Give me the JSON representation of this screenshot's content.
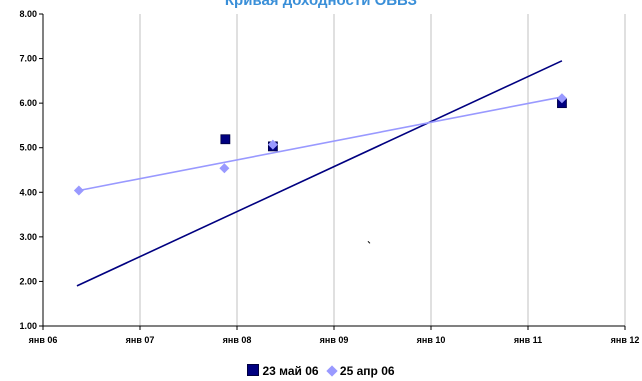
{
  "chart_data": {
    "type": "scatter",
    "title": "Кривая доходности ОБВЗ",
    "xlabel": "",
    "ylabel": "",
    "x_tick_labels": [
      "янв 06",
      "янв 07",
      "янв 08",
      "янв 09",
      "янв 10",
      "янв 11",
      "янв 12"
    ],
    "x_range": [
      2006.0,
      2012.0
    ],
    "y_tick_labels": [
      "1.00",
      "2.00",
      "3.00",
      "4.00",
      "5.00",
      "6.00",
      "7.00",
      "8.00"
    ],
    "y_range": [
      1.0,
      8.0
    ],
    "grid": "vertical",
    "legend_position": "bottom",
    "series": [
      {
        "name": "23 май 06",
        "marker": "square",
        "color": "#000080",
        "points": [
          [
            2007.88,
            5.19
          ],
          [
            2008.37,
            5.03
          ],
          [
            2011.35,
            6.0
          ]
        ],
        "trendline": [
          [
            2006.35,
            1.9
          ],
          [
            2011.35,
            6.95
          ]
        ]
      },
      {
        "name": "25 апр 06",
        "marker": "diamond",
        "color": "#9999ff",
        "points": [
          [
            2006.37,
            4.04
          ],
          [
            2007.87,
            4.54
          ],
          [
            2008.37,
            5.07
          ],
          [
            2011.35,
            6.11
          ]
        ],
        "trendline": [
          [
            2006.37,
            4.04
          ],
          [
            2011.35,
            6.14
          ]
        ]
      }
    ],
    "stray_mark": [
      2009.35,
      2.9
    ]
  }
}
